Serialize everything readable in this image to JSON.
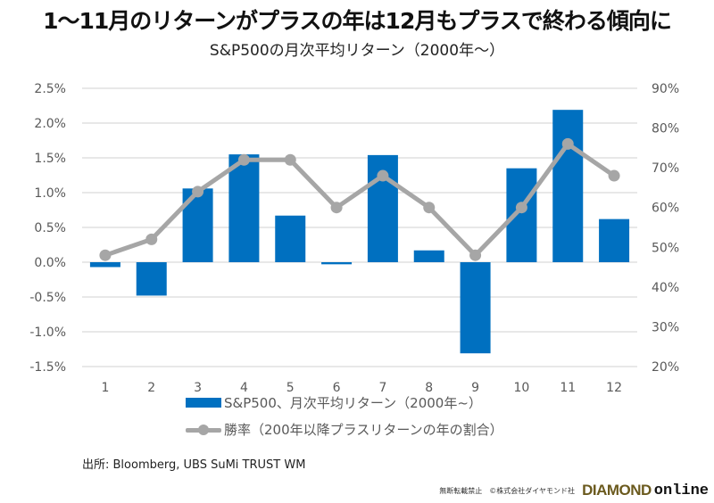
{
  "chart_data": {
    "type": "bar+line",
    "title": "1〜11月のリターンがプラスの年は12月もプラスで終わる傾向に",
    "subtitle": "S&P500の月次平均リターン（2000年〜）",
    "categories": [
      "1",
      "2",
      "3",
      "4",
      "5",
      "6",
      "7",
      "8",
      "9",
      "10",
      "11",
      "12"
    ],
    "series": [
      {
        "name": "S&P500、月次平均リターン（2000年~）",
        "type": "bar",
        "axis": "left",
        "color": "#0070c0",
        "unit": "%",
        "values": [
          -0.07,
          -0.48,
          1.06,
          1.55,
          0.67,
          -0.03,
          1.54,
          0.17,
          -1.31,
          1.35,
          2.19,
          0.62
        ]
      },
      {
        "name": "勝率（200年以降プラスリターンの年の割合）",
        "type": "line",
        "axis": "right",
        "color": "#a6a6a6",
        "unit": "%",
        "values": [
          48,
          52,
          64,
          72,
          72,
          60,
          68,
          60,
          48,
          60,
          76,
          68
        ]
      }
    ],
    "left_axis": {
      "ylim": [
        -1.5,
        2.5
      ],
      "ticks": [
        2.5,
        2.0,
        1.5,
        1.0,
        0.5,
        0.0,
        -0.5,
        -1.0,
        -1.5
      ],
      "tick_labels": [
        "2.5%",
        "2.0%",
        "1.5%",
        "1.0%",
        "0.5%",
        "0.0%",
        "-0.5%",
        "-1.0%",
        "-1.5%"
      ]
    },
    "right_axis": {
      "ylim": [
        20,
        90
      ],
      "ticks": [
        90,
        80,
        70,
        60,
        50,
        40,
        30,
        20
      ],
      "tick_labels": [
        "90%",
        "80%",
        "70%",
        "60%",
        "50%",
        "40%",
        "30%",
        "20%"
      ]
    },
    "grid": true,
    "legend_position": "bottom",
    "xlabel": "",
    "ylabel": ""
  },
  "source": "出所: Bloomberg, UBS SuMi TRUST WM",
  "footer": {
    "copyright": "無断転載禁止　©株式会社ダイヤモンド社",
    "brand_part1": "DIAMOND",
    "brand_part2": "online"
  }
}
